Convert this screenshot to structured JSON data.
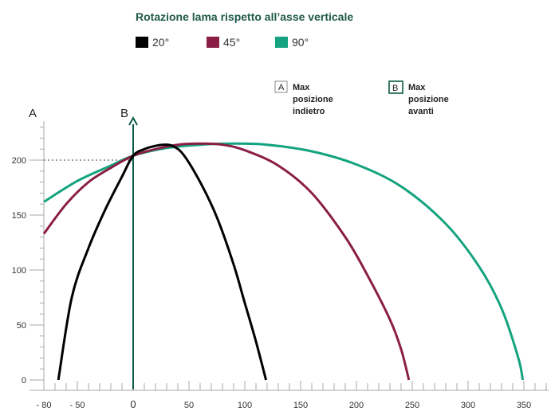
{
  "chart_data": {
    "type": "line",
    "title": "Rotazione lama rispetto all’asse verticale",
    "xlabel": "",
    "ylabel": "",
    "xlim": [
      -80,
      370
    ],
    "ylim": [
      -5,
      235
    ],
    "x_ticks": [
      {
        "value": -80,
        "label": "- 80"
      },
      {
        "value": -50,
        "label": "- 50"
      },
      {
        "value": 0,
        "label": "0"
      },
      {
        "value": 50,
        "label": "50"
      },
      {
        "value": 100,
        "label": "100"
      },
      {
        "value": 150,
        "label": "150"
      },
      {
        "value": 200,
        "label": "200"
      },
      {
        "value": 250,
        "label": "250"
      },
      {
        "value": 300,
        "label": "300"
      },
      {
        "value": 350,
        "label": "350"
      }
    ],
    "y_ticks": [
      {
        "value": 0,
        "label": "0"
      },
      {
        "value": 50,
        "label": "50"
      },
      {
        "value": 100,
        "label": "100"
      },
      {
        "value": 150,
        "label": "150"
      },
      {
        "value": 200,
        "label": "200"
      }
    ],
    "series": [
      {
        "name": "20°",
        "color": "#000000",
        "x": [
          -67,
          -55,
          -40,
          -25,
          -10,
          0,
          10,
          20,
          27,
          35,
          45,
          60,
          75,
          90,
          100,
          110,
          119
        ],
        "y": [
          0,
          75,
          120,
          155,
          185,
          204,
          210,
          213,
          214,
          213,
          205,
          180,
          148,
          105,
          70,
          35,
          0
        ]
      },
      {
        "name": "45°",
        "color": "#8b1e45",
        "x": [
          -80,
          -60,
          -40,
          -20,
          0,
          20,
          40,
          60,
          80,
          100,
          130,
          160,
          190,
          210,
          230,
          240,
          247
        ],
        "y": [
          133,
          160,
          180,
          193,
          204,
          210,
          214,
          215,
          214,
          209,
          195,
          170,
          130,
          95,
          55,
          28,
          0
        ]
      },
      {
        "name": "90°",
        "color": "#14a37f",
        "x": [
          -80,
          -50,
          -20,
          0,
          30,
          60,
          90,
          120,
          160,
          200,
          240,
          280,
          310,
          330,
          345,
          349
        ],
        "y": [
          162,
          181,
          195,
          204,
          211,
          214,
          215,
          214,
          208,
          196,
          176,
          142,
          103,
          65,
          20,
          0
        ]
      }
    ],
    "reference_lines": [
      {
        "name": "B",
        "orientation": "vertical",
        "x": 0,
        "color": "#0b5a48"
      },
      {
        "name": "200-guide",
        "orientation": "horizontal",
        "y": 200,
        "style": "dotted"
      }
    ],
    "axis_letters": {
      "y_axis": "A",
      "vertical_line": "B"
    },
    "notes": [
      {
        "letter": "A",
        "lines": [
          "Max",
          "posizione",
          "indietro"
        ],
        "box_color": "#888888"
      },
      {
        "letter": "B",
        "lines": [
          "Max",
          "posizione",
          "avanti"
        ],
        "box_color": "#0b5a48"
      }
    ],
    "legend_placement": "top-left",
    "grid": false
  }
}
